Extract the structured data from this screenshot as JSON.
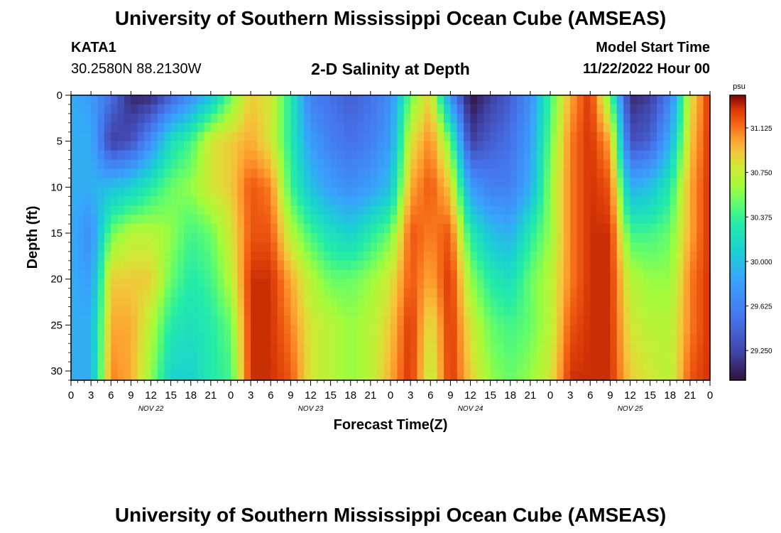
{
  "header": {
    "title": "University of Southern Mississippi Ocean Cube (AMSEAS)",
    "station": "KATA1",
    "coords": "30.2580N  88.2130W",
    "plot_title": "2-D Salinity at Depth",
    "model_start_label": "Model Start Time",
    "model_start_value": "11/22/2022 Hour 00"
  },
  "footer": {
    "title": "University of Southern Mississippi Ocean Cube (AMSEAS)"
  },
  "chart_data": {
    "type": "heatmap",
    "variable": "Salinity",
    "xlabel": "Forecast Time(Z)",
    "ylabel": "Depth (ft)",
    "x_hours_range": [
      0,
      96
    ],
    "ylim": [
      0,
      31
    ],
    "y_inverted": true,
    "x_tick_labels": [
      "0",
      "3",
      "6",
      "9",
      "12",
      "15",
      "18",
      "21",
      "0",
      "3",
      "6",
      "9",
      "12",
      "15",
      "18",
      "21",
      "0",
      "3",
      "6",
      "9",
      "12",
      "15",
      "18",
      "21",
      "0",
      "3",
      "6",
      "9",
      "12",
      "15",
      "18",
      "21",
      "0"
    ],
    "y_ticks": [
      0,
      5,
      10,
      15,
      20,
      25,
      30
    ],
    "day_labels": [
      {
        "label": "NOV 22",
        "hour": 12
      },
      {
        "label": "NOV 23",
        "hour": 36
      },
      {
        "label": "NOV 24",
        "hour": 60
      },
      {
        "label": "NOV 25",
        "hour": 84
      }
    ],
    "colorbar": {
      "units": "psu",
      "min": 29.0,
      "max": 31.4,
      "ticks": [
        "31.125",
        "30.750",
        "30.375",
        "30.000",
        "29.625",
        "29.250"
      ]
    },
    "time_hours": [
      0,
      3,
      6,
      9,
      12,
      15,
      18,
      21,
      24,
      27,
      30,
      33,
      36,
      39,
      42,
      45,
      48,
      51,
      54,
      57,
      60,
      63,
      66,
      69,
      72,
      75,
      78,
      81,
      84,
      87,
      90,
      93,
      96
    ],
    "depths_ft": [
      0,
      5,
      10,
      15,
      20,
      25,
      31
    ],
    "salinity": [
      [
        29.9,
        29.9,
        29.9,
        29.9,
        29.9,
        29.9,
        29.9
      ],
      [
        29.8,
        29.9,
        29.9,
        29.7,
        29.8,
        29.9,
        29.9
      ],
      [
        29.5,
        29.2,
        30.0,
        30.5,
        30.9,
        31.0,
        31.1
      ],
      [
        29.1,
        29.3,
        30.1,
        30.7,
        30.9,
        31.0,
        31.0
      ],
      [
        29.1,
        29.7,
        30.3,
        30.7,
        30.9,
        30.7,
        30.6
      ],
      [
        29.4,
        30.2,
        30.5,
        30.6,
        30.5,
        30.3,
        30.1
      ],
      [
        29.7,
        30.4,
        30.6,
        30.4,
        30.3,
        30.2,
        30.1
      ],
      [
        30.0,
        30.8,
        30.8,
        30.5,
        30.4,
        30.3,
        30.3
      ],
      [
        30.5,
        30.9,
        30.9,
        30.8,
        30.7,
        30.5,
        30.4
      ],
      [
        30.9,
        31.0,
        31.2,
        31.2,
        31.3,
        31.3,
        31.3
      ],
      [
        30.8,
        30.8,
        31.1,
        31.2,
        31.3,
        31.3,
        31.3
      ],
      [
        30.3,
        30.3,
        30.4,
        30.7,
        31.0,
        31.1,
        31.2
      ],
      [
        29.6,
        29.8,
        30.0,
        30.4,
        30.7,
        30.8,
        30.8
      ],
      [
        29.5,
        29.6,
        29.8,
        30.2,
        30.5,
        30.7,
        30.7
      ],
      [
        29.4,
        29.5,
        29.7,
        30.1,
        30.5,
        30.6,
        30.6
      ],
      [
        29.5,
        29.6,
        29.8,
        30.3,
        30.6,
        30.7,
        30.7
      ],
      [
        29.7,
        29.8,
        30.0,
        30.5,
        30.8,
        30.9,
        31.0
      ],
      [
        30.5,
        30.8,
        31.0,
        31.2,
        31.2,
        31.3,
        31.3
      ],
      [
        30.9,
        31.1,
        31.2,
        31.1,
        31.0,
        30.8,
        30.7
      ],
      [
        29.7,
        30.5,
        30.9,
        31.2,
        31.3,
        31.3,
        31.3
      ],
      [
        29.0,
        29.2,
        29.8,
        30.3,
        30.6,
        30.8,
        30.9
      ],
      [
        29.2,
        29.4,
        29.6,
        30.0,
        30.3,
        30.5,
        30.6
      ],
      [
        29.4,
        29.5,
        29.6,
        29.9,
        30.2,
        30.4,
        30.5
      ],
      [
        29.7,
        29.8,
        29.9,
        30.3,
        30.5,
        30.5,
        30.6
      ],
      [
        30.4,
        30.5,
        30.6,
        30.6,
        30.7,
        30.7,
        30.8
      ],
      [
        31.0,
        31.1,
        31.1,
        31.1,
        31.1,
        31.2,
        31.3
      ],
      [
        31.3,
        31.3,
        31.3,
        31.3,
        31.3,
        31.3,
        31.3
      ],
      [
        30.5,
        31.0,
        31.2,
        31.3,
        31.3,
        31.3,
        31.3
      ],
      [
        29.1,
        29.3,
        29.9,
        30.4,
        30.7,
        30.8,
        30.9
      ],
      [
        29.2,
        29.4,
        30.0,
        30.4,
        30.6,
        30.7,
        30.8
      ],
      [
        29.6,
        29.9,
        30.3,
        30.5,
        30.6,
        30.7,
        30.7
      ],
      [
        30.8,
        30.9,
        31.0,
        31.0,
        31.1,
        31.1,
        31.2
      ],
      [
        31.3,
        31.3,
        31.3,
        31.3,
        31.3,
        31.3,
        31.3
      ]
    ]
  }
}
